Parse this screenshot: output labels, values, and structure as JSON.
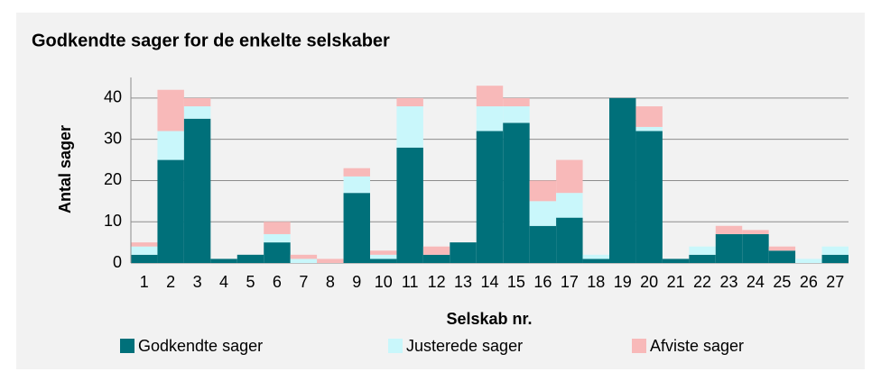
{
  "chart_data": {
    "type": "stacked_bar",
    "title": "Godkendte sager for de enkelte selskaber",
    "xlabel": "Selskab nr.",
    "ylabel": "Antal sager",
    "categories": [
      "1",
      "2",
      "3",
      "4",
      "5",
      "6",
      "7",
      "8",
      "9",
      "10",
      "11",
      "12",
      "13",
      "14",
      "15",
      "16",
      "17",
      "18",
      "19",
      "20",
      "21",
      "22",
      "23",
      "24",
      "25",
      "26",
      "27"
    ],
    "series": [
      {
        "name": "Godkendte sager",
        "color": "#00707a",
        "values": [
          2,
          25,
          35,
          1,
          2,
          5,
          0,
          0,
          17,
          1,
          28,
          2,
          5,
          32,
          34,
          9,
          11,
          1,
          40,
          32,
          1,
          2,
          7,
          7,
          3,
          0,
          2
        ]
      },
      {
        "name": "Justerede sager",
        "color": "#c9f7fb",
        "values": [
          2,
          7,
          3,
          0,
          0,
          2,
          1,
          0,
          4,
          1,
          10,
          0,
          0,
          6,
          4,
          6,
          6,
          1,
          0,
          1,
          0,
          2,
          0,
          0,
          0,
          1,
          2
        ]
      },
      {
        "name": "Afviste sager",
        "color": "#f8b9b9",
        "values": [
          1,
          10,
          2,
          0,
          0,
          3,
          1,
          1,
          2,
          1,
          2,
          2,
          0,
          5,
          2,
          5,
          8,
          0,
          0,
          5,
          0,
          0,
          2,
          1,
          1,
          0,
          0
        ]
      }
    ],
    "ylim": [
      0,
      45
    ],
    "yticks": [
      0,
      10,
      20,
      30,
      40
    ],
    "grid": true,
    "legend": "bottom"
  }
}
